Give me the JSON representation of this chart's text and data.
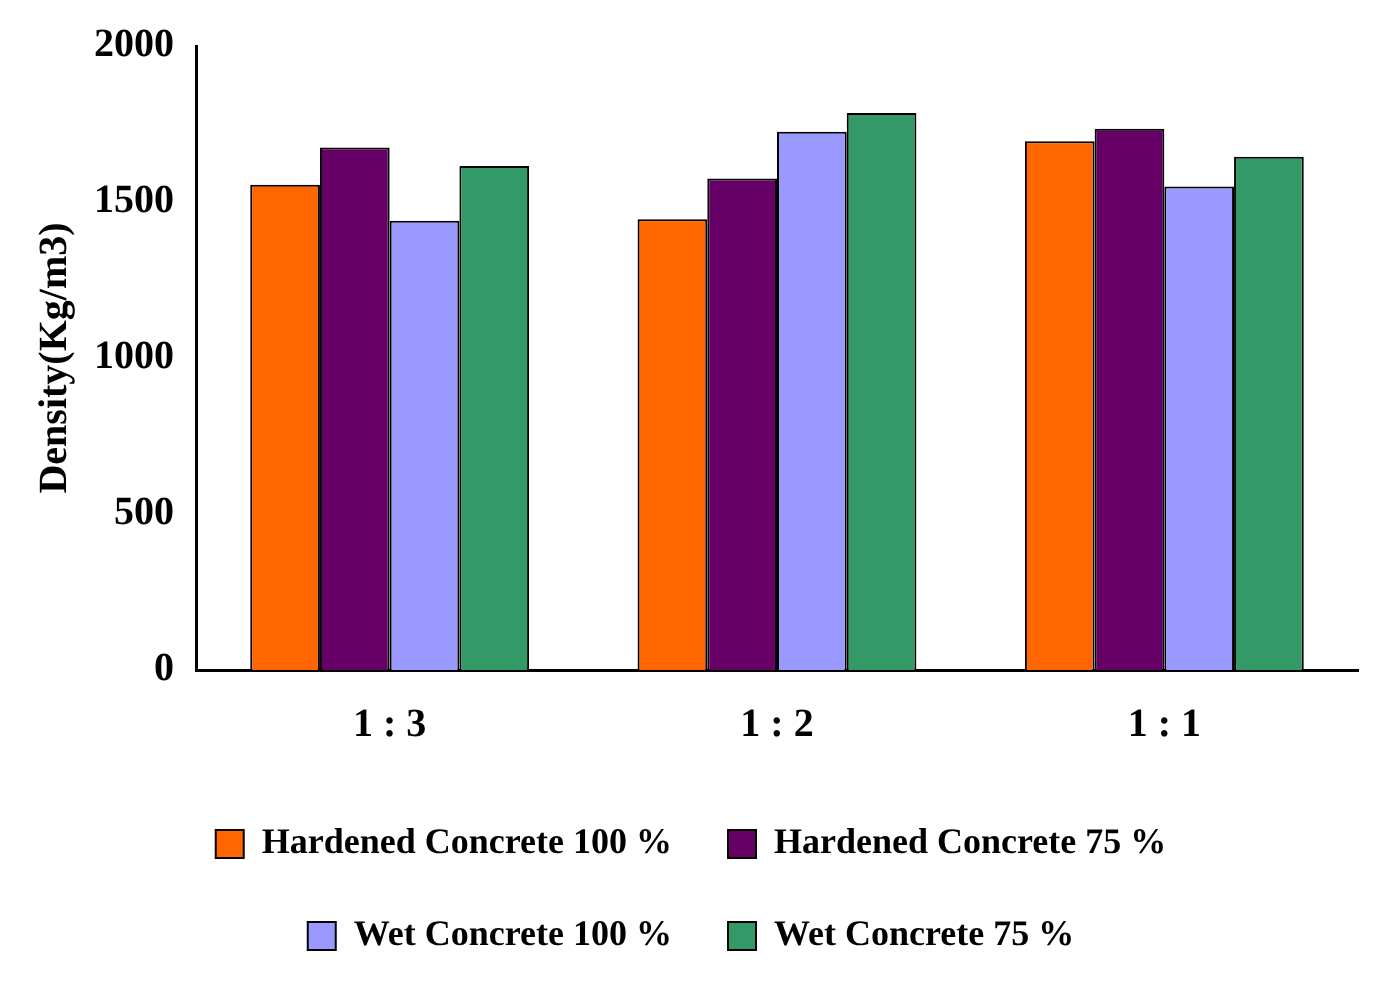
{
  "chart_data": {
    "type": "bar",
    "ylabel": "Density(Kg/m3)",
    "categories": [
      "1 : 3",
      "1 : 2",
      "1 : 1"
    ],
    "series": [
      {
        "name": "Hardened Concrete 100 %",
        "color": "#ff6600",
        "values": [
          1555,
          1445,
          1695
        ]
      },
      {
        "name": "Hardened Concrete 75 %",
        "color": "#660066",
        "values": [
          1675,
          1575,
          1735
        ]
      },
      {
        "name": "Wet Concrete 100 %",
        "color": "#9999ff",
        "values": [
          1440,
          1725,
          1550
        ]
      },
      {
        "name": "Wet Concrete 75 %",
        "color": "#339966",
        "values": [
          1615,
          1785,
          1645
        ]
      }
    ],
    "ylim": [
      0,
      2000
    ],
    "yticks": [
      0,
      500,
      1000,
      1500,
      2000
    ],
    "grid": false,
    "legend": "bottom"
  }
}
